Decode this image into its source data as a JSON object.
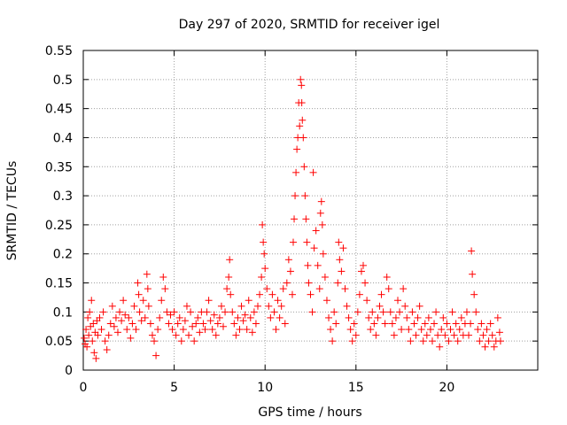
{
  "chart_data": {
    "type": "scatter",
    "title": "Day 297 of 2020, SRMTID for receiver igel",
    "xlabel": "GPS time / hours",
    "ylabel": "SRMTID / TECUs",
    "xlim": [
      0,
      25
    ],
    "ylim": [
      0,
      0.55
    ],
    "xticks": [
      0,
      5,
      10,
      15,
      20
    ],
    "xtick_labels": [
      "0",
      "5",
      "10",
      "15",
      "20"
    ],
    "yticks": [
      0,
      0.05,
      0.1,
      0.15,
      0.2,
      0.25,
      0.3,
      0.35,
      0.4,
      0.45,
      0.5,
      0.55
    ],
    "ytick_labels": [
      "0",
      "0.05",
      "0.1",
      "0.15",
      "0.2",
      "0.25",
      "0.3",
      "0.35",
      "0.4",
      "0.45",
      "0.5",
      "0.55"
    ],
    "grid": true,
    "marker": "+",
    "color": "#ff0000",
    "series": [
      {
        "name": "SRMTID",
        "points": [
          [
            0.05,
            0.055
          ],
          [
            0.1,
            0.045
          ],
          [
            0.15,
            0.07
          ],
          [
            0.2,
            0.04
          ],
          [
            0.25,
            0.09
          ],
          [
            0.3,
            0.06
          ],
          [
            0.35,
            0.1
          ],
          [
            0.4,
            0.075
          ],
          [
            0.45,
            0.12
          ],
          [
            0.5,
            0.05
          ],
          [
            0.55,
            0.08
          ],
          [
            0.6,
            0.03
          ],
          [
            0.65,
            0.065
          ],
          [
            0.7,
            0.02
          ],
          [
            0.75,
            0.085
          ],
          [
            0.8,
            0.06
          ],
          [
            0.9,
            0.09
          ],
          [
            1.0,
            0.07
          ],
          [
            1.1,
            0.1
          ],
          [
            1.2,
            0.05
          ],
          [
            1.3,
            0.035
          ],
          [
            1.4,
            0.06
          ],
          [
            1.5,
            0.08
          ],
          [
            1.6,
            0.11
          ],
          [
            1.7,
            0.075
          ],
          [
            1.8,
            0.09
          ],
          [
            1.9,
            0.065
          ],
          [
            2.0,
            0.1
          ],
          [
            2.1,
            0.085
          ],
          [
            2.2,
            0.12
          ],
          [
            2.3,
            0.095
          ],
          [
            2.4,
            0.07
          ],
          [
            2.5,
            0.09
          ],
          [
            2.6,
            0.055
          ],
          [
            2.7,
            0.08
          ],
          [
            2.8,
            0.11
          ],
          [
            2.9,
            0.07
          ],
          [
            3.0,
            0.15
          ],
          [
            3.05,
            0.13
          ],
          [
            3.1,
            0.1
          ],
          [
            3.2,
            0.085
          ],
          [
            3.3,
            0.12
          ],
          [
            3.4,
            0.09
          ],
          [
            3.5,
            0.165
          ],
          [
            3.55,
            0.14
          ],
          [
            3.6,
            0.11
          ],
          [
            3.7,
            0.08
          ],
          [
            3.8,
            0.06
          ],
          [
            3.9,
            0.05
          ],
          [
            4.0,
            0.025
          ],
          [
            4.1,
            0.07
          ],
          [
            4.2,
            0.09
          ],
          [
            4.3,
            0.12
          ],
          [
            4.4,
            0.16
          ],
          [
            4.5,
            0.14
          ],
          [
            4.6,
            0.1
          ],
          [
            4.7,
            0.08
          ],
          [
            4.8,
            0.095
          ],
          [
            4.9,
            0.07
          ],
          [
            5.0,
            0.1
          ],
          [
            5.1,
            0.06
          ],
          [
            5.2,
            0.08
          ],
          [
            5.3,
            0.09
          ],
          [
            5.4,
            0.05
          ],
          [
            5.5,
            0.07
          ],
          [
            5.6,
            0.085
          ],
          [
            5.7,
            0.11
          ],
          [
            5.8,
            0.06
          ],
          [
            5.9,
            0.1
          ],
          [
            6.0,
            0.075
          ],
          [
            6.1,
            0.05
          ],
          [
            6.2,
            0.08
          ],
          [
            6.3,
            0.09
          ],
          [
            6.4,
            0.065
          ],
          [
            6.5,
            0.1
          ],
          [
            6.6,
            0.08
          ],
          [
            6.7,
            0.07
          ],
          [
            6.8,
            0.1
          ],
          [
            6.9,
            0.12
          ],
          [
            7.0,
            0.085
          ],
          [
            7.1,
            0.07
          ],
          [
            7.2,
            0.095
          ],
          [
            7.3,
            0.06
          ],
          [
            7.4,
            0.08
          ],
          [
            7.5,
            0.09
          ],
          [
            7.6,
            0.11
          ],
          [
            7.7,
            0.075
          ],
          [
            7.8,
            0.1
          ],
          [
            7.9,
            0.14
          ],
          [
            8.0,
            0.16
          ],
          [
            8.05,
            0.19
          ],
          [
            8.1,
            0.13
          ],
          [
            8.2,
            0.1
          ],
          [
            8.3,
            0.08
          ],
          [
            8.4,
            0.06
          ],
          [
            8.5,
            0.09
          ],
          [
            8.6,
            0.07
          ],
          [
            8.7,
            0.11
          ],
          [
            8.8,
            0.085
          ],
          [
            8.9,
            0.095
          ],
          [
            9.0,
            0.07
          ],
          [
            9.1,
            0.12
          ],
          [
            9.2,
            0.09
          ],
          [
            9.3,
            0.065
          ],
          [
            9.4,
            0.1
          ],
          [
            9.5,
            0.08
          ],
          [
            9.6,
            0.11
          ],
          [
            9.7,
            0.13
          ],
          [
            9.8,
            0.16
          ],
          [
            9.85,
            0.25
          ],
          [
            9.9,
            0.22
          ],
          [
            9.95,
            0.2
          ],
          [
            10.0,
            0.175
          ],
          [
            10.1,
            0.14
          ],
          [
            10.2,
            0.11
          ],
          [
            10.3,
            0.09
          ],
          [
            10.4,
            0.13
          ],
          [
            10.5,
            0.1
          ],
          [
            10.6,
            0.07
          ],
          [
            10.7,
            0.12
          ],
          [
            10.8,
            0.09
          ],
          [
            10.9,
            0.11
          ],
          [
            11.0,
            0.14
          ],
          [
            11.1,
            0.08
          ],
          [
            11.2,
            0.15
          ],
          [
            11.3,
            0.19
          ],
          [
            11.4,
            0.17
          ],
          [
            11.5,
            0.13
          ],
          [
            11.55,
            0.22
          ],
          [
            11.6,
            0.26
          ],
          [
            11.65,
            0.3
          ],
          [
            11.7,
            0.34
          ],
          [
            11.75,
            0.38
          ],
          [
            11.8,
            0.4
          ],
          [
            11.85,
            0.46
          ],
          [
            11.9,
            0.42
          ],
          [
            11.95,
            0.5
          ],
          [
            12.0,
            0.49
          ],
          [
            12.02,
            0.46
          ],
          [
            12.05,
            0.43
          ],
          [
            12.1,
            0.4
          ],
          [
            12.15,
            0.35
          ],
          [
            12.2,
            0.3
          ],
          [
            12.25,
            0.26
          ],
          [
            12.3,
            0.22
          ],
          [
            12.35,
            0.18
          ],
          [
            12.4,
            0.15
          ],
          [
            12.5,
            0.13
          ],
          [
            12.6,
            0.1
          ],
          [
            12.65,
            0.34
          ],
          [
            12.7,
            0.21
          ],
          [
            12.8,
            0.24
          ],
          [
            12.9,
            0.18
          ],
          [
            13.0,
            0.14
          ],
          [
            13.05,
            0.27
          ],
          [
            13.1,
            0.29
          ],
          [
            13.15,
            0.25
          ],
          [
            13.2,
            0.2
          ],
          [
            13.3,
            0.16
          ],
          [
            13.4,
            0.12
          ],
          [
            13.5,
            0.09
          ],
          [
            13.6,
            0.07
          ],
          [
            13.7,
            0.05
          ],
          [
            13.8,
            0.1
          ],
          [
            13.9,
            0.08
          ],
          [
            14.0,
            0.15
          ],
          [
            14.05,
            0.22
          ],
          [
            14.1,
            0.19
          ],
          [
            14.2,
            0.17
          ],
          [
            14.3,
            0.21
          ],
          [
            14.4,
            0.14
          ],
          [
            14.5,
            0.11
          ],
          [
            14.6,
            0.09
          ],
          [
            14.7,
            0.07
          ],
          [
            14.8,
            0.05
          ],
          [
            14.9,
            0.08
          ],
          [
            15.0,
            0.06
          ],
          [
            15.1,
            0.1
          ],
          [
            15.2,
            0.13
          ],
          [
            15.3,
            0.17
          ],
          [
            15.4,
            0.18
          ],
          [
            15.5,
            0.15
          ],
          [
            15.6,
            0.12
          ],
          [
            15.7,
            0.09
          ],
          [
            15.8,
            0.07
          ],
          [
            15.9,
            0.1
          ],
          [
            16.0,
            0.08
          ],
          [
            16.1,
            0.06
          ],
          [
            16.2,
            0.09
          ],
          [
            16.3,
            0.11
          ],
          [
            16.4,
            0.13
          ],
          [
            16.5,
            0.1
          ],
          [
            16.6,
            0.08
          ],
          [
            16.7,
            0.16
          ],
          [
            16.8,
            0.14
          ],
          [
            16.9,
            0.1
          ],
          [
            17.0,
            0.08
          ],
          [
            17.1,
            0.06
          ],
          [
            17.2,
            0.09
          ],
          [
            17.3,
            0.12
          ],
          [
            17.4,
            0.1
          ],
          [
            17.5,
            0.07
          ],
          [
            17.6,
            0.14
          ],
          [
            17.7,
            0.11
          ],
          [
            17.8,
            0.09
          ],
          [
            17.9,
            0.07
          ],
          [
            18.0,
            0.05
          ],
          [
            18.1,
            0.1
          ],
          [
            18.2,
            0.08
          ],
          [
            18.3,
            0.06
          ],
          [
            18.4,
            0.09
          ],
          [
            18.5,
            0.11
          ],
          [
            18.6,
            0.07
          ],
          [
            18.7,
            0.05
          ],
          [
            18.8,
            0.08
          ],
          [
            18.9,
            0.06
          ],
          [
            19.0,
            0.09
          ],
          [
            19.1,
            0.07
          ],
          [
            19.2,
            0.05
          ],
          [
            19.3,
            0.08
          ],
          [
            19.4,
            0.1
          ],
          [
            19.5,
            0.06
          ],
          [
            19.6,
            0.04
          ],
          [
            19.7,
            0.07
          ],
          [
            19.8,
            0.09
          ],
          [
            19.9,
            0.06
          ],
          [
            20.0,
            0.08
          ],
          [
            20.1,
            0.05
          ],
          [
            20.2,
            0.07
          ],
          [
            20.3,
            0.1
          ],
          [
            20.4,
            0.06
          ],
          [
            20.5,
            0.08
          ],
          [
            20.6,
            0.05
          ],
          [
            20.7,
            0.07
          ],
          [
            20.8,
            0.09
          ],
          [
            20.9,
            0.06
          ],
          [
            21.0,
            0.08
          ],
          [
            21.1,
            0.1
          ],
          [
            21.2,
            0.06
          ],
          [
            21.3,
            0.08
          ],
          [
            21.35,
            0.205
          ],
          [
            21.4,
            0.165
          ],
          [
            21.5,
            0.13
          ],
          [
            21.6,
            0.1
          ],
          [
            21.7,
            0.07
          ],
          [
            21.8,
            0.05
          ],
          [
            21.9,
            0.08
          ],
          [
            22.0,
            0.06
          ],
          [
            22.1,
            0.04
          ],
          [
            22.2,
            0.07
          ],
          [
            22.3,
            0.05
          ],
          [
            22.4,
            0.08
          ],
          [
            22.5,
            0.06
          ],
          [
            22.6,
            0.04
          ],
          [
            22.7,
            0.05
          ],
          [
            22.8,
            0.09
          ],
          [
            22.9,
            0.065
          ],
          [
            22.95,
            0.05
          ]
        ]
      }
    ]
  }
}
